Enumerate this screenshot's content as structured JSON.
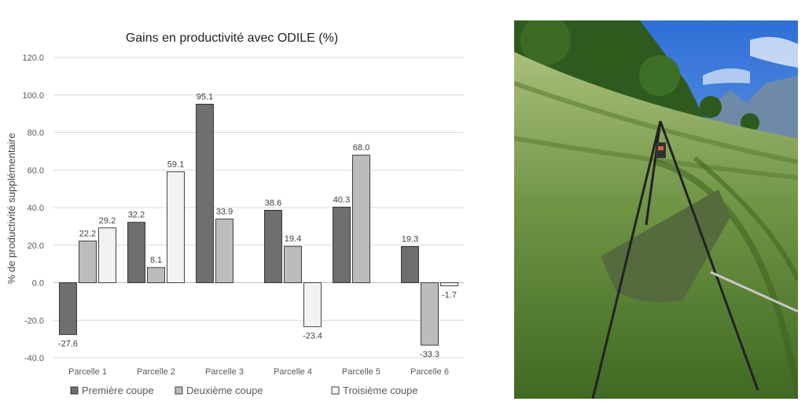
{
  "chart_data": {
    "type": "bar",
    "title": "Gains en productivité avec ODILE (%)",
    "xlabel": "",
    "ylabel": "% de productivité supplémentaire",
    "ylim": [
      -40,
      120
    ],
    "yticks": [
      "-40.0",
      "-20.0",
      "0.0",
      "20.0",
      "40.0",
      "60.0",
      "80.0",
      "100.0",
      "120.0"
    ],
    "grid": true,
    "legend_position": "bottom",
    "categories": [
      "Parcelle 1",
      "Parcelle 2",
      "Parcelle 3",
      "Parcelle 4",
      "Parcelle 5",
      "Parcelle 6"
    ],
    "series": [
      {
        "name": "Première coupe",
        "color": "#6f6f6f",
        "values": [
          -27.6,
          32.2,
          95.1,
          38.6,
          40.3,
          19.3
        ],
        "labels": [
          "-27.6",
          "32.2",
          "95.1",
          "38.6",
          "40.3",
          "19.3"
        ]
      },
      {
        "name": "Deuxième coupe",
        "color": "#bcbcbc",
        "values": [
          22.2,
          8.1,
          33.9,
          19.4,
          68.0,
          -33.3
        ],
        "labels": [
          "22.2",
          "8.1",
          "33.9",
          "19.4",
          "68.0",
          "-33.3"
        ]
      },
      {
        "name": "Troisième coupe",
        "color": "#f2f2f2",
        "values": [
          29.2,
          59.1,
          null,
          -23.4,
          null,
          -1.7
        ],
        "labels": [
          "29.2",
          "59.1",
          "",
          "-23.4",
          "",
          "-1.7"
        ]
      }
    ]
  }
}
